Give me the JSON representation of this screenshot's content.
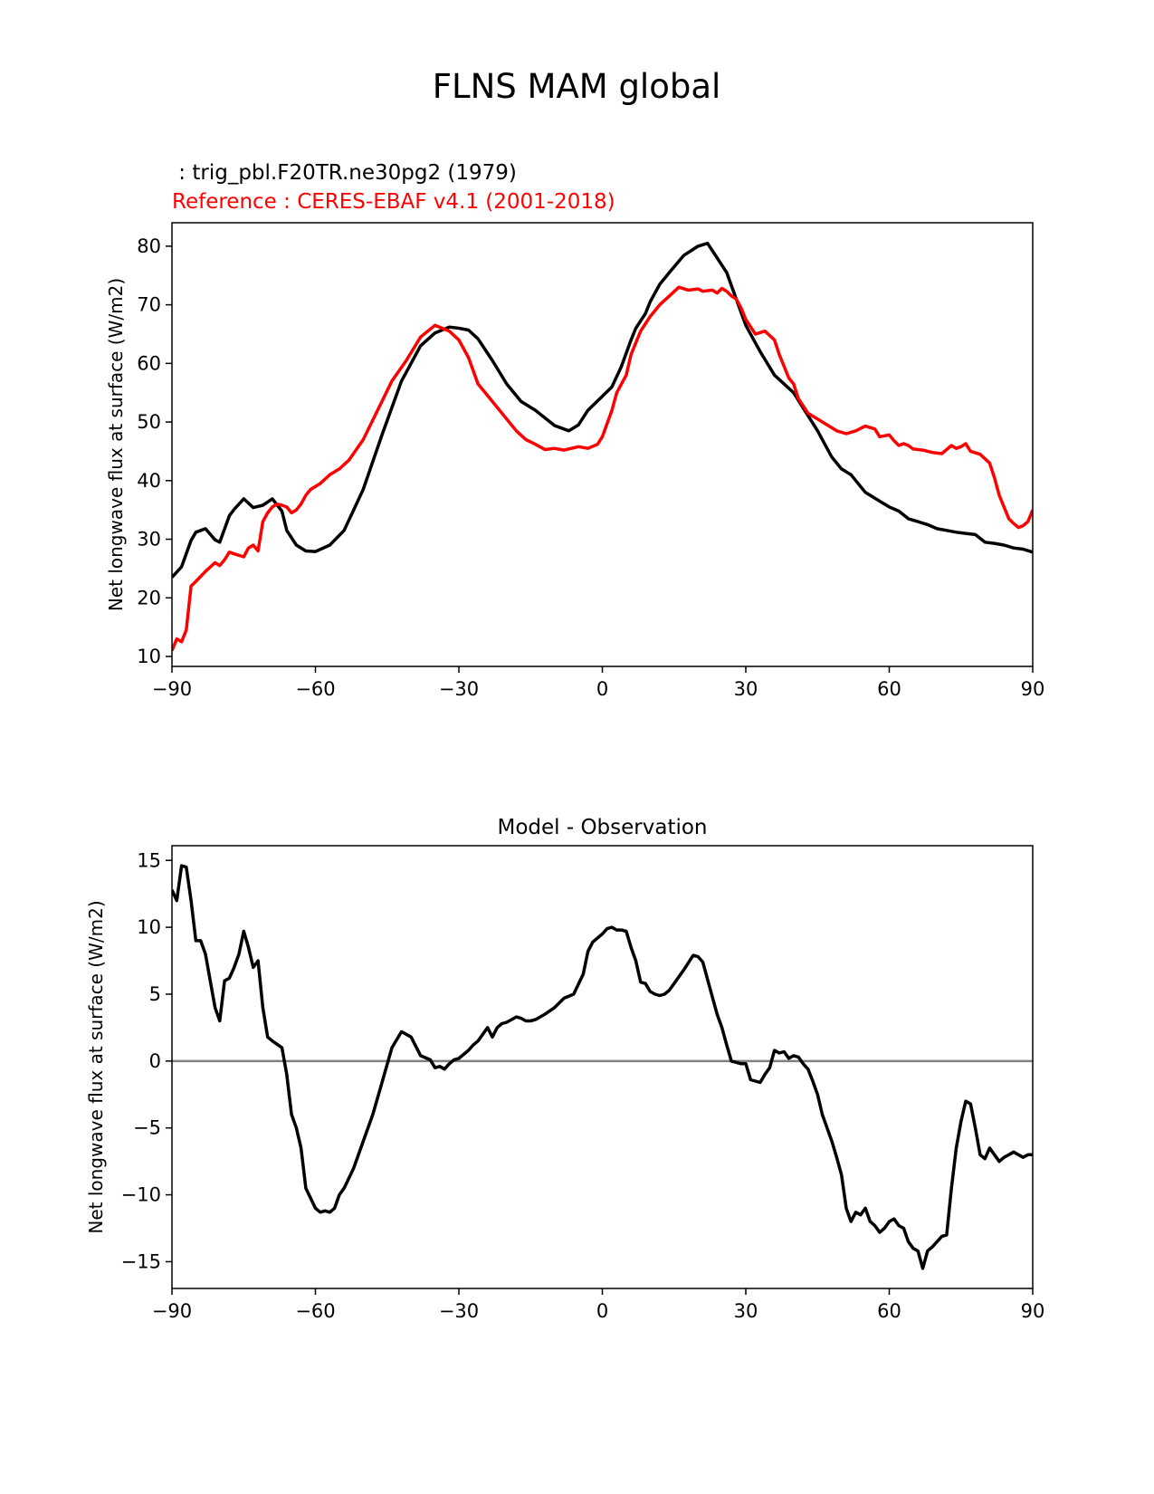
{
  "figure_title": "FLNS MAM global",
  "legend": {
    "test_label": " : trig_pbl.F20TR.ne30pg2 (1979)",
    "ref_label": "Reference : CERES-EBAF v4.1 (2001-2018)"
  },
  "colors": {
    "test": "#000000",
    "ref": "#ff0000",
    "zero_line": "#808080"
  },
  "chart_data": [
    {
      "type": "line",
      "title": "",
      "xlabel": "",
      "ylabel": "Net longwave flux at surface (W/m2)",
      "xlim": [
        -90,
        90
      ],
      "ylim": [
        8.3,
        84
      ],
      "xticks": [
        -90,
        -60,
        -30,
        0,
        30,
        60,
        90
      ],
      "xtick_labels": [
        "−90",
        "−60",
        "−30",
        "0",
        "30",
        "60",
        "90"
      ],
      "yticks": [
        10,
        20,
        30,
        40,
        50,
        60,
        70,
        80
      ],
      "ytick_labels": [
        "10",
        "20",
        "30",
        "40",
        "50",
        "60",
        "70",
        "80"
      ],
      "series": [
        {
          "name": "trig_pbl.F20TR.ne30pg2 (1979)",
          "color": "#000000",
          "x": [
            -90,
            -88,
            -86,
            -85,
            -83,
            -81,
            -80,
            -78,
            -77,
            -75,
            -73,
            -71,
            -69,
            -67,
            -66,
            -64,
            -62,
            -60,
            -57,
            -54,
            -50,
            -46,
            -42,
            -38,
            -35,
            -32,
            -30,
            -28,
            -26,
            -23,
            -20,
            -17,
            -14,
            -10,
            -7,
            -5,
            -3,
            0,
            2,
            4,
            6,
            7,
            9,
            10,
            12,
            14,
            17,
            20,
            22,
            24,
            26,
            28,
            30,
            33,
            36,
            40,
            45,
            48,
            50,
            52,
            55,
            58,
            60,
            62,
            64,
            66,
            68,
            70,
            72,
            74,
            76,
            78,
            80,
            82,
            84,
            86,
            88,
            90
          ],
          "values": [
            23.5,
            25.3,
            29.8,
            31.2,
            31.8,
            29.9,
            29.5,
            34.0,
            35.1,
            36.9,
            35.4,
            35.8,
            36.9,
            34.8,
            31.5,
            29.0,
            28.0,
            27.9,
            29.0,
            31.5,
            38.5,
            48.0,
            57.0,
            63.0,
            65.2,
            66.2,
            66.0,
            65.7,
            64.2,
            60.5,
            56.5,
            53.5,
            52.0,
            49.4,
            48.5,
            49.5,
            52.0,
            54.4,
            56.0,
            59.5,
            64.0,
            66.0,
            68.5,
            70.5,
            73.5,
            75.5,
            78.4,
            80.0,
            80.5,
            78.0,
            75.5,
            71.0,
            66.5,
            62.0,
            58.0,
            55.0,
            48.5,
            44.0,
            42.0,
            41.0,
            38.0,
            36.5,
            35.5,
            34.8,
            33.5,
            33.0,
            32.5,
            31.8,
            31.5,
            31.2,
            31.0,
            30.8,
            29.5,
            29.3,
            29.0,
            28.5,
            28.3,
            27.8
          ]
        },
        {
          "name": "CERES-EBAF v4.1 (2001-2018)",
          "color": "#ff0000",
          "x": [
            -90,
            -89,
            -88,
            -87,
            -86,
            -85,
            -83,
            -81,
            -80,
            -79,
            -78,
            -77,
            -75,
            -74,
            -73,
            -72,
            -71,
            -70,
            -69,
            -68,
            -67,
            -66,
            -65,
            -64,
            -63,
            -62,
            -61,
            -59,
            -57,
            -55,
            -53,
            -50,
            -47,
            -44,
            -41,
            -38,
            -35,
            -32,
            -30,
            -28,
            -26,
            -23,
            -20,
            -18,
            -16,
            -14,
            -12,
            -10,
            -8,
            -5,
            -3,
            -1,
            0,
            2,
            3,
            5,
            6,
            8,
            10,
            12,
            14,
            16,
            18,
            20,
            21,
            23,
            24,
            25,
            26,
            27,
            28,
            29,
            30,
            32,
            34,
            36,
            37,
            38,
            39,
            40,
            41,
            43,
            45,
            47,
            49,
            51,
            53,
            55,
            57,
            58,
            60,
            61,
            62,
            63,
            64,
            65,
            67,
            69,
            71,
            73,
            74,
            75,
            76,
            77,
            79,
            81,
            82,
            83,
            84,
            85,
            86,
            87,
            88,
            89,
            90
          ],
          "values": [
            11.0,
            13.0,
            12.5,
            14.5,
            22.0,
            22.8,
            24.5,
            26.0,
            25.5,
            26.5,
            27.8,
            27.5,
            27.0,
            28.5,
            29.0,
            28.0,
            33.0,
            34.5,
            35.5,
            36.0,
            35.8,
            35.5,
            34.5,
            35.0,
            36.0,
            37.5,
            38.5,
            39.5,
            41.0,
            42.0,
            43.5,
            47.0,
            52.0,
            57.0,
            60.5,
            64.5,
            66.5,
            65.5,
            64.0,
            61.0,
            56.5,
            53.5,
            50.5,
            48.5,
            47.0,
            46.2,
            45.3,
            45.5,
            45.2,
            45.8,
            45.5,
            46.2,
            47.5,
            52.0,
            55.0,
            58.0,
            61.5,
            65.5,
            68.0,
            70.0,
            71.5,
            73.0,
            72.5,
            72.7,
            72.3,
            72.5,
            72.0,
            72.8,
            72.3,
            71.5,
            71.0,
            69.5,
            67.5,
            65.0,
            65.5,
            64.0,
            61.5,
            59.5,
            57.5,
            56.5,
            54.0,
            51.5,
            50.5,
            49.5,
            48.5,
            48.0,
            48.5,
            49.3,
            48.8,
            47.5,
            47.8,
            46.8,
            46.0,
            46.3,
            46.0,
            45.4,
            45.2,
            44.8,
            44.6,
            46.0,
            45.5,
            45.8,
            46.3,
            45.0,
            44.5,
            43.0,
            40.5,
            37.5,
            35.5,
            33.5,
            32.7,
            32.0,
            32.3,
            33.0,
            35.0
          ]
        }
      ]
    },
    {
      "type": "line",
      "title": "Model - Observation",
      "xlabel": "",
      "ylabel": "Net longwave flux at surface (W/m2)",
      "xlim": [
        -90,
        90
      ],
      "ylim": [
        -17,
        16.1
      ],
      "xticks": [
        -90,
        -60,
        -30,
        0,
        30,
        60,
        90
      ],
      "xtick_labels": [
        "−90",
        "−60",
        "−30",
        "0",
        "30",
        "60",
        "90"
      ],
      "yticks": [
        15,
        10,
        5,
        0,
        -5,
        -10,
        -15
      ],
      "ytick_labels": [
        "15",
        "10",
        "5",
        "0",
        "−5",
        "−10",
        "−15"
      ],
      "reference_line": 0,
      "series": [
        {
          "name": "Model - Observation",
          "color": "#000000",
          "x": [
            -90,
            -89,
            -88,
            -87,
            -86,
            -85,
            -84,
            -83,
            -81,
            -80,
            -79,
            -78,
            -77,
            -76,
            -75,
            -74,
            -73,
            -72,
            -71,
            -70,
            -69,
            -67,
            -66,
            -65,
            -64,
            -63,
            -62,
            -60,
            -59,
            -58,
            -57,
            -56,
            -55,
            -54,
            -52,
            -50,
            -48,
            -46,
            -44,
            -42,
            -40,
            -38,
            -36,
            -35,
            -34,
            -33,
            -32,
            -31,
            -30,
            -28,
            -27,
            -26,
            -25,
            -24,
            -23,
            -22,
            -21,
            -20,
            -19,
            -18,
            -17,
            -16,
            -15,
            -14,
            -13,
            -12,
            -10,
            -8,
            -6,
            -4,
            -3,
            -2,
            -1,
            0,
            1,
            2,
            3,
            4,
            5,
            6,
            7,
            8,
            9,
            10,
            11,
            12,
            13,
            14,
            15,
            17,
            19,
            20,
            21,
            23,
            24,
            25,
            26,
            27,
            28,
            29,
            30,
            31,
            32,
            33,
            34,
            35,
            36,
            37,
            38,
            39,
            40,
            41,
            42,
            43,
            44,
            45,
            46,
            47,
            48,
            49,
            50,
            51,
            52,
            53,
            54,
            55,
            56,
            57,
            58,
            59,
            60,
            61,
            62,
            63,
            64,
            65,
            66,
            67,
            68,
            69,
            70,
            71,
            72,
            73,
            74,
            75,
            76,
            77,
            78,
            79,
            80,
            81,
            82,
            83,
            84,
            85,
            86,
            87,
            88,
            89,
            90
          ],
          "values": [
            12.8,
            12.0,
            14.6,
            14.5,
            12.0,
            9.0,
            9.0,
            8.0,
            4.0,
            3.0,
            6.0,
            6.2,
            7.0,
            8.0,
            9.7,
            8.5,
            7.0,
            7.5,
            4.0,
            1.8,
            1.5,
            1.0,
            -1.0,
            -4.0,
            -5.0,
            -6.5,
            -9.5,
            -11.0,
            -11.3,
            -11.2,
            -11.3,
            -11.0,
            -10.0,
            -9.5,
            -8.0,
            -6.0,
            -4.0,
            -1.5,
            1.0,
            2.2,
            1.8,
            0.4,
            0.1,
            -0.5,
            -0.4,
            -0.6,
            -0.2,
            0.1,
            0.2,
            0.8,
            1.2,
            1.5,
            2.0,
            2.5,
            1.8,
            2.5,
            2.8,
            2.9,
            3.1,
            3.3,
            3.2,
            3.0,
            3.0,
            3.1,
            3.3,
            3.5,
            4.0,
            4.7,
            5.0,
            6.5,
            8.2,
            8.9,
            9.2,
            9.5,
            9.9,
            10.0,
            9.8,
            9.8,
            9.7,
            8.5,
            7.5,
            5.9,
            5.8,
            5.2,
            5.0,
            4.9,
            5.0,
            5.3,
            5.8,
            6.8,
            7.9,
            7.8,
            7.4,
            4.8,
            3.5,
            2.5,
            1.2,
            0.0,
            -0.1,
            -0.2,
            -0.2,
            -1.4,
            -1.5,
            -1.6,
            -1.0,
            -0.5,
            0.8,
            0.6,
            0.7,
            0.2,
            0.4,
            0.3,
            -0.2,
            -0.6,
            -1.5,
            -2.5,
            -4.0,
            -5.0,
            -6.0,
            -7.2,
            -8.5,
            -11.0,
            -12.0,
            -11.3,
            -11.5,
            -11.0,
            -12.0,
            -12.3,
            -12.8,
            -12.5,
            -12.0,
            -11.8,
            -12.3,
            -12.5,
            -13.5,
            -14.0,
            -14.2,
            -15.5,
            -14.2,
            -13.9,
            -13.5,
            -13.1,
            -13.0,
            -9.5,
            -6.5,
            -4.5,
            -3.0,
            -3.2,
            -5.0,
            -7.0,
            -7.3,
            -6.5,
            -7.0,
            -7.5,
            -7.2,
            -7.0,
            -6.8,
            -7.0,
            -7.2,
            -7.0,
            -7.0
          ]
        }
      ]
    }
  ]
}
